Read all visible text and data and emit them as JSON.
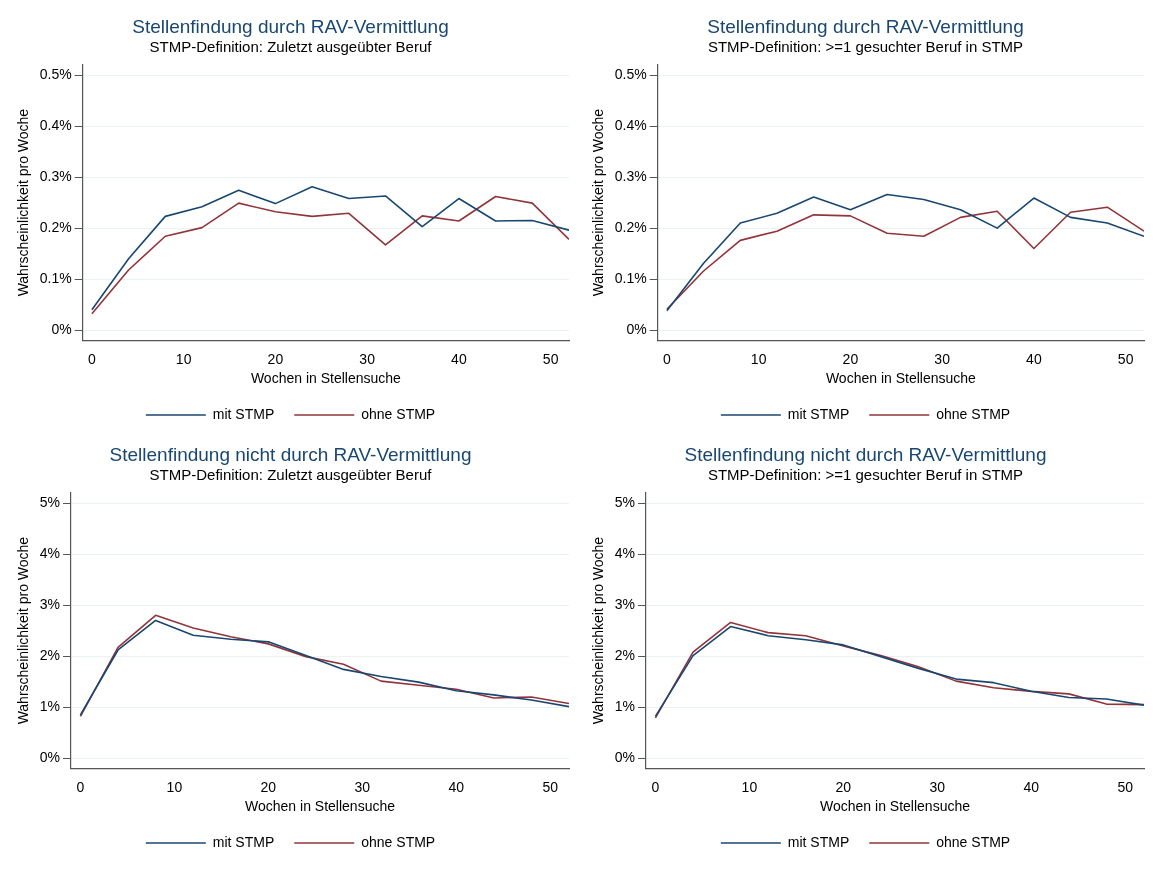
{
  "chart_data": [
    {
      "type": "line",
      "title": "Stellenfindung durch RAV-Vermittlung",
      "subtitle": "STMP-Definition: Zuletzt ausgeübter Beruf",
      "xlabel": "Wochen in Stellensuche",
      "ylabel": "Wahrscheinlichkeit pro Woche",
      "x": [
        0,
        4,
        8,
        12,
        16,
        20,
        24,
        28,
        32,
        36,
        40,
        44,
        48,
        52
      ],
      "series": [
        {
          "name": "mit STMP",
          "color": "#1a476f",
          "values": [
            0.04,
            0.14,
            0.223,
            0.242,
            0.274,
            0.248,
            0.281,
            0.258,
            0.263,
            0.203,
            0.258,
            0.214,
            0.215,
            0.196
          ]
        },
        {
          "name": "ohne STMP",
          "color": "#90353b",
          "values": [
            0.032,
            0.118,
            0.184,
            0.201,
            0.249,
            0.232,
            0.223,
            0.229,
            0.167,
            0.224,
            0.214,
            0.262,
            0.249,
            0.178
          ]
        }
      ],
      "xlim": [
        -1,
        52
      ],
      "ylim": [
        -0.02,
        0.52
      ],
      "xticks": [
        0,
        10,
        20,
        30,
        40,
        50
      ],
      "yticks": [
        {
          "value": 0,
          "label": "0%"
        },
        {
          "value": 0.1,
          "label": "0.1%"
        },
        {
          "value": 0.2,
          "label": "0.2%"
        },
        {
          "value": 0.3,
          "label": "0.3%"
        },
        {
          "value": 0.4,
          "label": "0.4%"
        },
        {
          "value": 0.5,
          "label": "0.5%"
        }
      ],
      "grid": "y",
      "legend": "bottom",
      "marker": "none",
      "line_style": "solid"
    },
    {
      "type": "line",
      "title": "Stellenfindung durch RAV-Vermittlung",
      "subtitle": "STMP-Definition: >=1 gesuchter Beruf in STMP",
      "xlabel": "Wochen in Stellensuche",
      "ylabel": "Wahrscheinlichkeit pro Woche",
      "x": [
        0,
        4,
        8,
        12,
        16,
        20,
        24,
        28,
        32,
        36,
        40,
        44,
        48,
        52
      ],
      "series": [
        {
          "name": "mit STMP",
          "color": "#1a476f",
          "values": [
            0.038,
            0.131,
            0.21,
            0.229,
            0.261,
            0.236,
            0.266,
            0.256,
            0.236,
            0.2,
            0.259,
            0.221,
            0.21,
            0.184
          ]
        },
        {
          "name": "ohne STMP",
          "color": "#90353b",
          "values": [
            0.041,
            0.116,
            0.176,
            0.194,
            0.226,
            0.224,
            0.19,
            0.184,
            0.221,
            0.233,
            0.16,
            0.231,
            0.241,
            0.194
          ]
        }
      ],
      "xlim": [
        -1,
        52
      ],
      "ylim": [
        -0.02,
        0.52
      ],
      "xticks": [
        0,
        10,
        20,
        30,
        40,
        50
      ],
      "yticks": [
        {
          "value": 0,
          "label": "0%"
        },
        {
          "value": 0.1,
          "label": "0.1%"
        },
        {
          "value": 0.2,
          "label": "0.2%"
        },
        {
          "value": 0.3,
          "label": "0.3%"
        },
        {
          "value": 0.4,
          "label": "0.4%"
        },
        {
          "value": 0.5,
          "label": "0.5%"
        }
      ],
      "grid": "y",
      "legend": "bottom",
      "marker": "none",
      "line_style": "solid"
    },
    {
      "type": "line",
      "title": "Stellenfindung nicht durch RAV-Vermittlung",
      "subtitle": "STMP-Definition: Zuletzt ausgeübter Beruf",
      "xlabel": "Wochen in Stellensuche",
      "ylabel": "Wahrscheinlichkeit pro Woche",
      "x": [
        0,
        4,
        8,
        12,
        16,
        20,
        24,
        28,
        32,
        36,
        40,
        44,
        48,
        52
      ],
      "series": [
        {
          "name": "mit STMP",
          "color": "#1a476f",
          "values": [
            0.85,
            2.12,
            2.7,
            2.41,
            2.33,
            2.28,
            2.01,
            1.74,
            1.6,
            1.49,
            1.32,
            1.24,
            1.14,
            1.01
          ]
        },
        {
          "name": "ohne STMP",
          "color": "#90353b",
          "values": [
            0.82,
            2.17,
            2.8,
            2.55,
            2.38,
            2.24,
            1.99,
            1.84,
            1.51,
            1.43,
            1.35,
            1.18,
            1.2,
            1.07
          ]
        }
      ],
      "xlim": [
        -1,
        52
      ],
      "ylim": [
        -0.2,
        5.2
      ],
      "xticks": [
        0,
        10,
        20,
        30,
        40,
        50
      ],
      "yticks": [
        {
          "value": 0,
          "label": "0%"
        },
        {
          "value": 1,
          "label": "1%"
        },
        {
          "value": 2,
          "label": "2%"
        },
        {
          "value": 3,
          "label": "3%"
        },
        {
          "value": 4,
          "label": "4%"
        },
        {
          "value": 5,
          "label": "5%"
        }
      ],
      "grid": "y",
      "legend": "bottom",
      "marker": "none",
      "line_style": "solid"
    },
    {
      "type": "line",
      "title": "Stellenfindung nicht durch RAV-Vermittlung",
      "subtitle": "STMP-Definition: >=1 gesuchter Beruf in STMP",
      "xlabel": "Wochen in Stellensuche",
      "ylabel": "Wahrscheinlichkeit pro Woche",
      "x": [
        0,
        4,
        8,
        12,
        16,
        20,
        24,
        28,
        32,
        36,
        40,
        44,
        48,
        52
      ],
      "series": [
        {
          "name": "mit STMP",
          "color": "#1a476f",
          "values": [
            0.82,
            2.01,
            2.58,
            2.4,
            2.32,
            2.22,
            1.99,
            1.76,
            1.55,
            1.48,
            1.31,
            1.19,
            1.16,
            1.04
          ]
        },
        {
          "name": "ohne STMP",
          "color": "#90353b",
          "values": [
            0.79,
            2.08,
            2.66,
            2.46,
            2.4,
            2.2,
            2.01,
            1.79,
            1.51,
            1.38,
            1.31,
            1.26,
            1.06,
            1.05
          ]
        }
      ],
      "xlim": [
        -1,
        52
      ],
      "ylim": [
        -0.2,
        5.2
      ],
      "xticks": [
        0,
        10,
        20,
        30,
        40,
        50
      ],
      "yticks": [
        {
          "value": 0,
          "label": "0%"
        },
        {
          "value": 1,
          "label": "1%"
        },
        {
          "value": 2,
          "label": "2%"
        },
        {
          "value": 3,
          "label": "3%"
        },
        {
          "value": 4,
          "label": "4%"
        },
        {
          "value": 5,
          "label": "5%"
        }
      ],
      "grid": "y",
      "legend": "bottom",
      "marker": "none",
      "line_style": "solid"
    }
  ]
}
